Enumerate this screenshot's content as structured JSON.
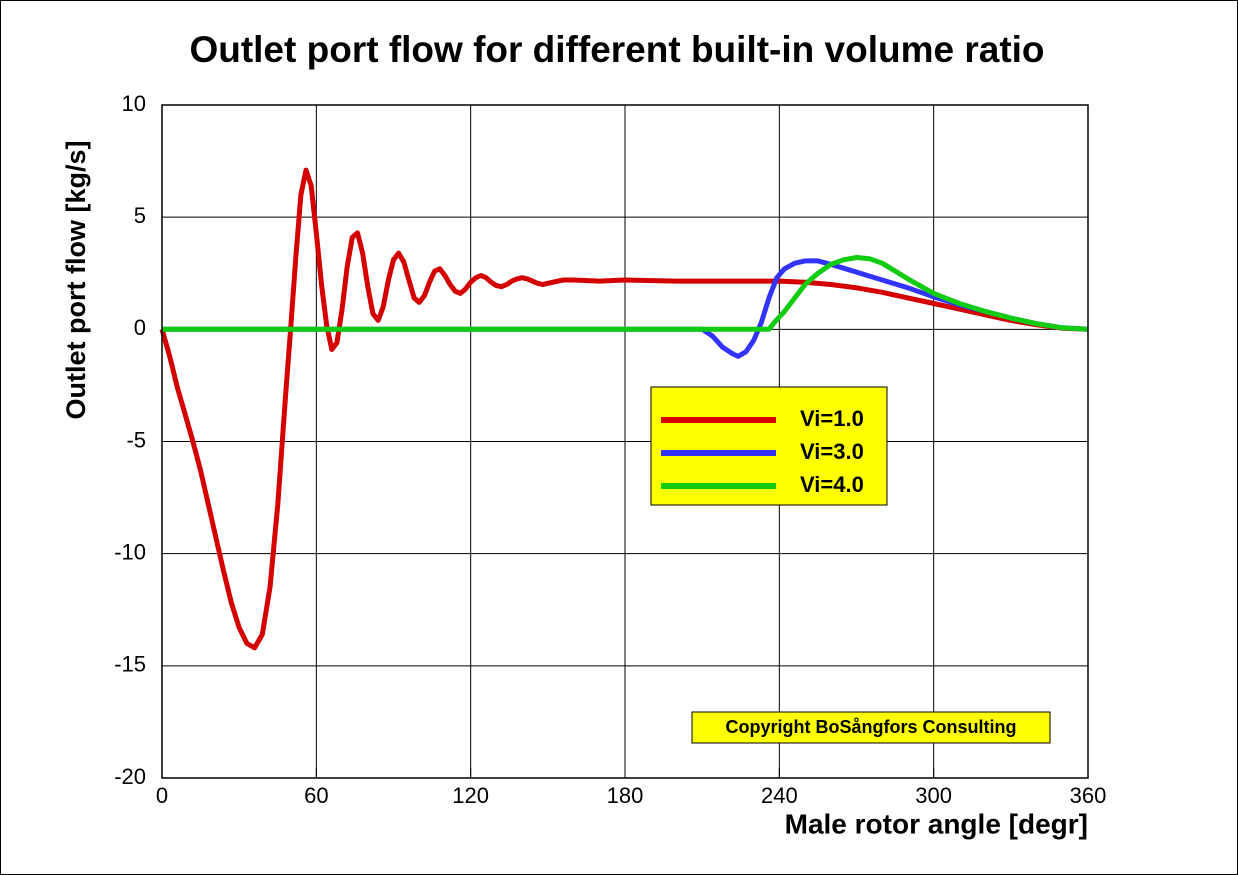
{
  "chart_data": {
    "type": "line",
    "title": "Outlet port flow for different built-in volume ratio",
    "x_label": "Male rotor angle [degr]",
    "y_label": "Outlet port flow [kg/s]",
    "annotation": "Copyright BoSångfors Consulting",
    "xlim": [
      0,
      360
    ],
    "xticks": [
      0,
      60,
      120,
      180,
      240,
      300,
      360
    ],
    "ylim": [
      -20,
      10
    ],
    "yticks": [
      -20,
      -15,
      -10,
      -5,
      0,
      5,
      10
    ],
    "grid": true,
    "series": [
      {
        "name": "Vi=1.0",
        "color": "#d40000",
        "x": [
          0,
          3,
          6,
          9,
          12,
          15,
          18,
          21,
          24,
          27,
          30,
          33,
          36,
          39,
          42,
          45,
          48,
          50,
          52,
          54,
          56,
          58,
          60,
          62,
          64,
          66,
          68,
          70,
          72,
          74,
          76,
          78,
          80,
          82,
          84,
          86,
          88,
          90,
          92,
          94,
          96,
          98,
          100,
          102,
          104,
          106,
          108,
          110,
          112,
          114,
          116,
          118,
          120,
          122,
          124,
          126,
          128,
          130,
          132,
          134,
          136,
          138,
          140,
          142,
          144,
          146,
          148,
          152,
          156,
          160,
          170,
          180,
          200,
          220,
          240,
          250,
          260,
          270,
          280,
          290,
          300,
          310,
          320,
          330,
          340,
          350,
          360
        ],
        "values": [
          0,
          -1.2,
          -2.6,
          -3.8,
          -5.0,
          -6.3,
          -7.8,
          -9.3,
          -10.8,
          -12.2,
          -13.3,
          -14.0,
          -14.2,
          -13.6,
          -11.5,
          -7.8,
          -3.0,
          0,
          3.2,
          6.0,
          7.1,
          6.4,
          4.3,
          2.0,
          0.2,
          -0.9,
          -0.6,
          0.9,
          2.8,
          4.1,
          4.3,
          3.4,
          1.9,
          0.7,
          0.4,
          1.0,
          2.2,
          3.1,
          3.4,
          3.0,
          2.2,
          1.4,
          1.2,
          1.5,
          2.1,
          2.6,
          2.7,
          2.4,
          2.0,
          1.7,
          1.6,
          1.8,
          2.1,
          2.3,
          2.4,
          2.3,
          2.1,
          1.95,
          1.9,
          2.0,
          2.15,
          2.25,
          2.3,
          2.25,
          2.15,
          2.05,
          2.0,
          2.1,
          2.2,
          2.2,
          2.15,
          2.2,
          2.15,
          2.15,
          2.15,
          2.1,
          2.0,
          1.85,
          1.65,
          1.4,
          1.15,
          0.9,
          0.65,
          0.4,
          0.2,
          0.05,
          0
        ]
      },
      {
        "name": "Vi=3.0",
        "color": "#3333ff",
        "x": [
          0,
          210,
          214,
          218,
          222,
          224,
          227,
          230,
          233,
          236,
          239,
          242,
          246,
          250,
          255,
          260,
          270,
          280,
          290,
          300,
          310,
          320,
          330,
          340,
          350,
          360
        ],
        "values": [
          0,
          0,
          -0.3,
          -0.8,
          -1.1,
          -1.2,
          -1.0,
          -0.5,
          0.3,
          1.4,
          2.3,
          2.7,
          2.95,
          3.05,
          3.05,
          2.9,
          2.55,
          2.2,
          1.85,
          1.45,
          1.1,
          0.8,
          0.5,
          0.25,
          0.07,
          0
        ]
      },
      {
        "name": "Vi=4.0",
        "color": "#11cc11",
        "x": [
          0,
          236,
          238,
          242,
          246,
          250,
          255,
          260,
          265,
          270,
          275,
          280,
          285,
          290,
          300,
          310,
          320,
          330,
          340,
          350,
          360
        ],
        "values": [
          0,
          0,
          0.3,
          0.8,
          1.4,
          2.0,
          2.5,
          2.9,
          3.1,
          3.2,
          3.15,
          2.95,
          2.6,
          2.25,
          1.6,
          1.15,
          0.8,
          0.5,
          0.25,
          0.07,
          0
        ]
      }
    ]
  }
}
